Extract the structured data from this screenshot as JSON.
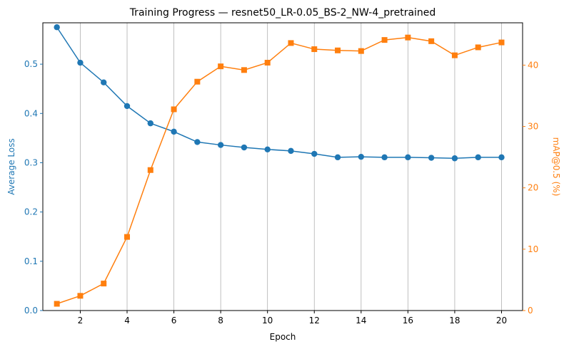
{
  "chart_data": {
    "type": "line",
    "title": "Training Progress — resnet50_LR-0.05_BS-2_NW-4_pretrained",
    "xlabel": "Epoch",
    "ylabel_left": "Average Loss",
    "ylabel_right": "mAP@0.5 (%)",
    "x": [
      1,
      2,
      3,
      4,
      5,
      6,
      7,
      8,
      9,
      10,
      11,
      12,
      13,
      14,
      15,
      16,
      17,
      18,
      19,
      20
    ],
    "xlim": [
      0.4,
      20.9
    ],
    "ylim_left": [
      0,
      0.584
    ],
    "ylim_right": [
      0,
      46.9
    ],
    "x_ticks": [
      2,
      4,
      6,
      8,
      10,
      12,
      14,
      16,
      18,
      20
    ],
    "y_ticks_left": [
      0.0,
      0.1,
      0.2,
      0.3,
      0.4,
      0.5
    ],
    "y_ticks_right": [
      0,
      10,
      20,
      30,
      40
    ],
    "grid": "vertical",
    "series": [
      {
        "name": "Average Loss",
        "axis": "left",
        "color": "#1f77b4",
        "marker": "circle",
        "values": [
          0.575,
          0.503,
          0.463,
          0.415,
          0.38,
          0.363,
          0.342,
          0.336,
          0.331,
          0.327,
          0.324,
          0.318,
          0.311,
          0.312,
          0.311,
          0.311,
          0.31,
          0.309,
          0.311,
          0.311
        ]
      },
      {
        "name": "mAP@0.5 (%)",
        "axis": "right",
        "color": "#ff7f0e",
        "marker": "square",
        "values": [
          1.1,
          2.4,
          4.4,
          12.0,
          22.9,
          32.8,
          37.3,
          39.8,
          39.2,
          40.4,
          43.6,
          42.6,
          42.4,
          42.3,
          44.1,
          44.5,
          43.9,
          41.6,
          42.9,
          43.7
        ]
      }
    ]
  }
}
